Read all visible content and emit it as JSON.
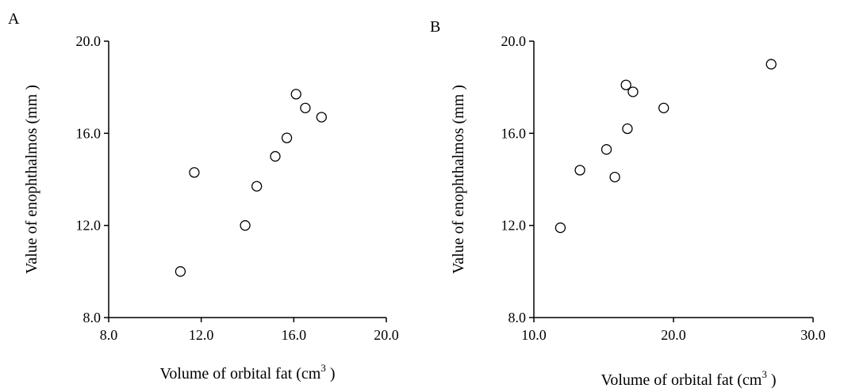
{
  "chart_data": [
    {
      "panel_label": "A",
      "type": "scatter",
      "xlabel": "Volume of  orbital fat (cm",
      "xlabel_sup": "3",
      "xlabel_end": " )",
      "ylabel": "Value of enophthalmos (mm )",
      "xlim": [
        8.0,
        20.0
      ],
      "ylim": [
        8.0,
        20.0
      ],
      "xticks": [
        8.0,
        12.0,
        16.0,
        20.0
      ],
      "yticks": [
        8.0,
        12.0,
        16.0,
        20.0
      ],
      "xtick_labels": [
        "8.0",
        "12.0",
        "16.0",
        "20.0"
      ],
      "ytick_labels": [
        "8.0",
        "12.0",
        "16.0",
        "20.0"
      ],
      "grid": false,
      "points": [
        {
          "x": 11.1,
          "y": 10.0
        },
        {
          "x": 11.7,
          "y": 14.3
        },
        {
          "x": 13.9,
          "y": 12.0
        },
        {
          "x": 14.4,
          "y": 13.7
        },
        {
          "x": 15.2,
          "y": 15.0
        },
        {
          "x": 15.7,
          "y": 15.8
        },
        {
          "x": 16.1,
          "y": 17.7
        },
        {
          "x": 16.5,
          "y": 17.1
        },
        {
          "x": 17.2,
          "y": 16.7
        }
      ]
    },
    {
      "panel_label": "B",
      "type": "scatter",
      "xlabel": "Volume of  orbital fat (cm",
      "xlabel_sup": "3",
      "xlabel_end": " )",
      "ylabel": "Value of enophthalmos (mm )",
      "xlim": [
        10.0,
        30.0
      ],
      "ylim": [
        8.0,
        20.0
      ],
      "xticks": [
        10.0,
        20.0,
        30.0
      ],
      "yticks": [
        8.0,
        12.0,
        16.0,
        20.0
      ],
      "xtick_labels": [
        "10.0",
        "20.0",
        "30.0"
      ],
      "ytick_labels": [
        "8.0",
        "12.0",
        "16.0",
        "20.0"
      ],
      "grid": false,
      "points": [
        {
          "x": 11.9,
          "y": 11.9
        },
        {
          "x": 13.3,
          "y": 14.4
        },
        {
          "x": 15.2,
          "y": 15.3
        },
        {
          "x": 15.8,
          "y": 14.1
        },
        {
          "x": 16.6,
          "y": 18.1
        },
        {
          "x": 16.7,
          "y": 16.2
        },
        {
          "x": 17.1,
          "y": 17.8
        },
        {
          "x": 19.3,
          "y": 17.1
        },
        {
          "x": 27.0,
          "y": 19.0
        }
      ]
    }
  ]
}
